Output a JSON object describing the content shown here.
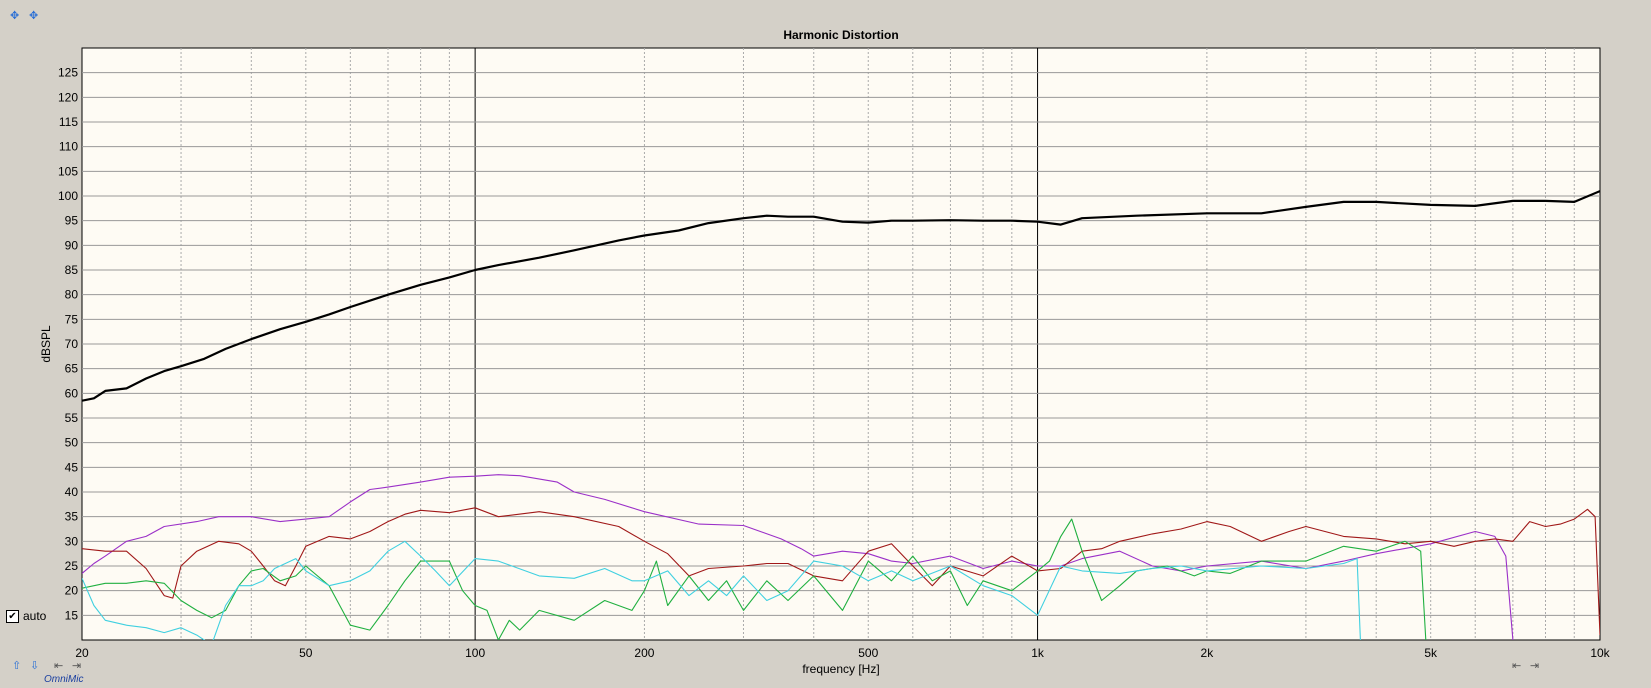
{
  "toolbar_icons": [
    "move-icon",
    "zoom-icon"
  ],
  "auto_label": "auto",
  "auto_checked": true,
  "brand_label": "OmniMic",
  "colors": {
    "background": "#d4d0c8",
    "plot_bg": "#fefbf4",
    "fundamental": "#000000",
    "h2": "#9b30c8",
    "h3": "#a01818",
    "h4": "#20b040",
    "h5": "#40d0e0"
  },
  "chart_data": {
    "type": "line",
    "title": "Harmonic Distortion",
    "xlabel": "frequency [Hz]",
    "ylabel": "dBSPL",
    "xscale": "log",
    "xlim": [
      20,
      10000
    ],
    "ylim": [
      10,
      130
    ],
    "grid": true,
    "x_ticks": [
      {
        "v": 20,
        "label": "20"
      },
      {
        "v": 50,
        "label": "50"
      },
      {
        "v": 100,
        "label": "100"
      },
      {
        "v": 200,
        "label": "200"
      },
      {
        "v": 500,
        "label": "500"
      },
      {
        "v": 1000,
        "label": "1k"
      },
      {
        "v": 2000,
        "label": "2k"
      },
      {
        "v": 5000,
        "label": "5k"
      },
      {
        "v": 10000,
        "label": "10k"
      }
    ],
    "y_ticks": [
      15,
      20,
      25,
      30,
      35,
      40,
      45,
      50,
      55,
      60,
      65,
      70,
      75,
      80,
      85,
      90,
      95,
      100,
      105,
      110,
      115,
      120,
      125
    ],
    "series": [
      {
        "color": "#000000",
        "width": 2.2,
        "points": [
          [
            20,
            58.5
          ],
          [
            21,
            59
          ],
          [
            22,
            60.5
          ],
          [
            24,
            61
          ],
          [
            26,
            63
          ],
          [
            28,
            64.5
          ],
          [
            30,
            65.5
          ],
          [
            33,
            67
          ],
          [
            36,
            69
          ],
          [
            40,
            71
          ],
          [
            45,
            73
          ],
          [
            50,
            74.5
          ],
          [
            55,
            76
          ],
          [
            60,
            77.5
          ],
          [
            70,
            80
          ],
          [
            80,
            82
          ],
          [
            90,
            83.5
          ],
          [
            100,
            85
          ],
          [
            110,
            86
          ],
          [
            130,
            87.5
          ],
          [
            150,
            89
          ],
          [
            180,
            91
          ],
          [
            200,
            92
          ],
          [
            230,
            93
          ],
          [
            260,
            94.5
          ],
          [
            300,
            95.5
          ],
          [
            330,
            96
          ],
          [
            360,
            95.8
          ],
          [
            400,
            95.8
          ],
          [
            450,
            94.8
          ],
          [
            500,
            94.6
          ],
          [
            550,
            95
          ],
          [
            600,
            95
          ],
          [
            700,
            95.1
          ],
          [
            800,
            95
          ],
          [
            900,
            95
          ],
          [
            1000,
            94.8
          ],
          [
            1100,
            94.2
          ],
          [
            1200,
            95.5
          ],
          [
            1500,
            96
          ],
          [
            2000,
            96.5
          ],
          [
            2500,
            96.5
          ],
          [
            3000,
            97.8
          ],
          [
            3500,
            98.8
          ],
          [
            4000,
            98.8
          ],
          [
            5000,
            98.2
          ],
          [
            6000,
            98
          ],
          [
            7000,
            99
          ],
          [
            8000,
            99
          ],
          [
            9000,
            98.8
          ],
          [
            10000,
            101
          ]
        ]
      },
      {
        "color": "#9b30c8",
        "width": 1.1,
        "points": [
          [
            20,
            23.5
          ],
          [
            21,
            25.5
          ],
          [
            22,
            27
          ],
          [
            24,
            30
          ],
          [
            26,
            31
          ],
          [
            28,
            33
          ],
          [
            32,
            34
          ],
          [
            35,
            35
          ],
          [
            40,
            35
          ],
          [
            45,
            34
          ],
          [
            50,
            34.5
          ],
          [
            55,
            35
          ],
          [
            60,
            38
          ],
          [
            65,
            40.5
          ],
          [
            70,
            41
          ],
          [
            80,
            42
          ],
          [
            90,
            43
          ],
          [
            100,
            43.2
          ],
          [
            110,
            43.5
          ],
          [
            120,
            43.3
          ],
          [
            140,
            42
          ],
          [
            150,
            40
          ],
          [
            170,
            38.5
          ],
          [
            200,
            36
          ],
          [
            250,
            33.5
          ],
          [
            300,
            33.2
          ],
          [
            350,
            30.5
          ],
          [
            380,
            28.5
          ],
          [
            400,
            27
          ],
          [
            450,
            28
          ],
          [
            500,
            27.5
          ],
          [
            550,
            26
          ],
          [
            600,
            25.5
          ],
          [
            700,
            27
          ],
          [
            800,
            24.5
          ],
          [
            900,
            26
          ],
          [
            1000,
            25
          ],
          [
            1100,
            25
          ],
          [
            1200,
            26.5
          ],
          [
            1400,
            28
          ],
          [
            1600,
            25
          ],
          [
            1800,
            24
          ],
          [
            2000,
            25
          ],
          [
            2500,
            26
          ],
          [
            3000,
            24.5
          ],
          [
            3500,
            26
          ],
          [
            4000,
            27.5
          ],
          [
            5000,
            29.5
          ],
          [
            6000,
            32
          ],
          [
            6500,
            31
          ],
          [
            6800,
            27
          ],
          [
            7000,
            10
          ]
        ]
      },
      {
        "color": "#a01818",
        "width": 1.1,
        "points": [
          [
            20,
            28.5
          ],
          [
            22,
            28
          ],
          [
            24,
            28
          ],
          [
            26,
            24.5
          ],
          [
            28,
            19
          ],
          [
            29,
            18.5
          ],
          [
            30,
            25
          ],
          [
            32,
            28
          ],
          [
            35,
            30
          ],
          [
            38,
            29.5
          ],
          [
            40,
            28
          ],
          [
            42,
            25
          ],
          [
            44,
            22
          ],
          [
            46,
            21
          ],
          [
            48,
            25
          ],
          [
            50,
            29
          ],
          [
            55,
            31
          ],
          [
            60,
            30.5
          ],
          [
            65,
            32
          ],
          [
            70,
            34
          ],
          [
            75,
            35.5
          ],
          [
            80,
            36.3
          ],
          [
            90,
            35.8
          ],
          [
            100,
            36.8
          ],
          [
            110,
            35
          ],
          [
            130,
            36
          ],
          [
            150,
            35
          ],
          [
            180,
            33
          ],
          [
            200,
            30
          ],
          [
            220,
            27.5
          ],
          [
            240,
            23
          ],
          [
            260,
            24.5
          ],
          [
            300,
            25
          ],
          [
            330,
            25.5
          ],
          [
            360,
            25.5
          ],
          [
            400,
            23
          ],
          [
            450,
            22
          ],
          [
            500,
            28
          ],
          [
            550,
            29.5
          ],
          [
            600,
            25
          ],
          [
            650,
            21
          ],
          [
            700,
            25
          ],
          [
            800,
            23
          ],
          [
            900,
            27
          ],
          [
            1000,
            24
          ],
          [
            1100,
            24.5
          ],
          [
            1200,
            28
          ],
          [
            1300,
            28.5
          ],
          [
            1400,
            30
          ],
          [
            1600,
            31.5
          ],
          [
            1800,
            32.5
          ],
          [
            2000,
            34
          ],
          [
            2200,
            33
          ],
          [
            2500,
            30
          ],
          [
            2800,
            32
          ],
          [
            3000,
            33
          ],
          [
            3500,
            31
          ],
          [
            4000,
            30.5
          ],
          [
            4500,
            29.5
          ],
          [
            5000,
            30
          ],
          [
            5500,
            29
          ],
          [
            6000,
            30
          ],
          [
            6500,
            30.5
          ],
          [
            7000,
            30
          ],
          [
            7500,
            34
          ],
          [
            8000,
            33
          ],
          [
            8500,
            33.5
          ],
          [
            9000,
            34.5
          ],
          [
            9500,
            36.5
          ],
          [
            9800,
            35
          ],
          [
            10000,
            11
          ]
        ]
      },
      {
        "color": "#20b040",
        "width": 1.1,
        "points": [
          [
            20,
            20.5
          ],
          [
            22,
            21.5
          ],
          [
            24,
            21.5
          ],
          [
            26,
            22
          ],
          [
            28,
            21.5
          ],
          [
            30,
            18
          ],
          [
            32,
            16
          ],
          [
            34,
            14.5
          ],
          [
            36,
            16
          ],
          [
            38,
            21
          ],
          [
            40,
            24
          ],
          [
            42,
            24.5
          ],
          [
            45,
            22
          ],
          [
            48,
            23
          ],
          [
            50,
            25
          ],
          [
            55,
            21
          ],
          [
            60,
            13
          ],
          [
            65,
            12
          ],
          [
            70,
            17
          ],
          [
            75,
            22
          ],
          [
            80,
            26
          ],
          [
            90,
            26
          ],
          [
            95,
            20
          ],
          [
            100,
            17
          ],
          [
            105,
            16
          ],
          [
            110,
            10
          ],
          [
            115,
            14
          ],
          [
            120,
            12
          ],
          [
            130,
            16
          ],
          [
            150,
            14
          ],
          [
            170,
            18
          ],
          [
            190,
            16
          ],
          [
            200,
            20
          ],
          [
            210,
            26
          ],
          [
            220,
            17
          ],
          [
            240,
            23
          ],
          [
            260,
            18
          ],
          [
            280,
            22
          ],
          [
            300,
            16
          ],
          [
            330,
            22
          ],
          [
            360,
            18
          ],
          [
            400,
            23
          ],
          [
            450,
            16
          ],
          [
            500,
            26
          ],
          [
            550,
            22
          ],
          [
            600,
            27
          ],
          [
            650,
            22
          ],
          [
            700,
            24
          ],
          [
            750,
            17
          ],
          [
            800,
            22
          ],
          [
            900,
            20
          ],
          [
            1000,
            24
          ],
          [
            1050,
            26
          ],
          [
            1100,
            31
          ],
          [
            1150,
            34.5
          ],
          [
            1200,
            28
          ],
          [
            1300,
            18
          ],
          [
            1400,
            21
          ],
          [
            1500,
            24
          ],
          [
            1700,
            25
          ],
          [
            1900,
            23
          ],
          [
            2000,
            24
          ],
          [
            2200,
            23.5
          ],
          [
            2500,
            26
          ],
          [
            3000,
            26
          ],
          [
            3500,
            29
          ],
          [
            4000,
            28
          ],
          [
            4500,
            30
          ],
          [
            4800,
            28
          ],
          [
            4900,
            10
          ]
        ]
      },
      {
        "color": "#40d0e0",
        "width": 1.1,
        "points": [
          [
            20,
            22.5
          ],
          [
            21,
            17
          ],
          [
            22,
            14
          ],
          [
            24,
            13
          ],
          [
            26,
            12.5
          ],
          [
            28,
            11.5
          ],
          [
            30,
            12.5
          ],
          [
            32,
            11
          ],
          [
            34,
            9
          ],
          [
            36,
            17
          ],
          [
            38,
            21
          ],
          [
            40,
            21
          ],
          [
            42,
            22
          ],
          [
            44,
            24.5
          ],
          [
            48,
            26.5
          ],
          [
            50,
            24
          ],
          [
            55,
            21
          ],
          [
            60,
            22
          ],
          [
            65,
            24
          ],
          [
            70,
            28
          ],
          [
            75,
            30
          ],
          [
            80,
            27
          ],
          [
            85,
            24
          ],
          [
            90,
            21
          ],
          [
            100,
            26.5
          ],
          [
            110,
            26
          ],
          [
            130,
            23
          ],
          [
            150,
            22.5
          ],
          [
            170,
            24.5
          ],
          [
            190,
            22
          ],
          [
            200,
            22
          ],
          [
            220,
            24
          ],
          [
            240,
            19
          ],
          [
            260,
            22
          ],
          [
            280,
            19
          ],
          [
            300,
            23
          ],
          [
            330,
            18
          ],
          [
            360,
            20
          ],
          [
            400,
            26
          ],
          [
            450,
            25
          ],
          [
            500,
            22
          ],
          [
            550,
            24
          ],
          [
            600,
            22
          ],
          [
            700,
            25
          ],
          [
            800,
            21
          ],
          [
            900,
            19
          ],
          [
            1000,
            15
          ],
          [
            1100,
            25
          ],
          [
            1200,
            24
          ],
          [
            1400,
            23.5
          ],
          [
            1600,
            24.5
          ],
          [
            1800,
            25
          ],
          [
            2000,
            24
          ],
          [
            2500,
            25
          ],
          [
            3000,
            24.5
          ],
          [
            3500,
            25.5
          ],
          [
            3700,
            26.5
          ],
          [
            3750,
            10
          ]
        ]
      }
    ]
  }
}
